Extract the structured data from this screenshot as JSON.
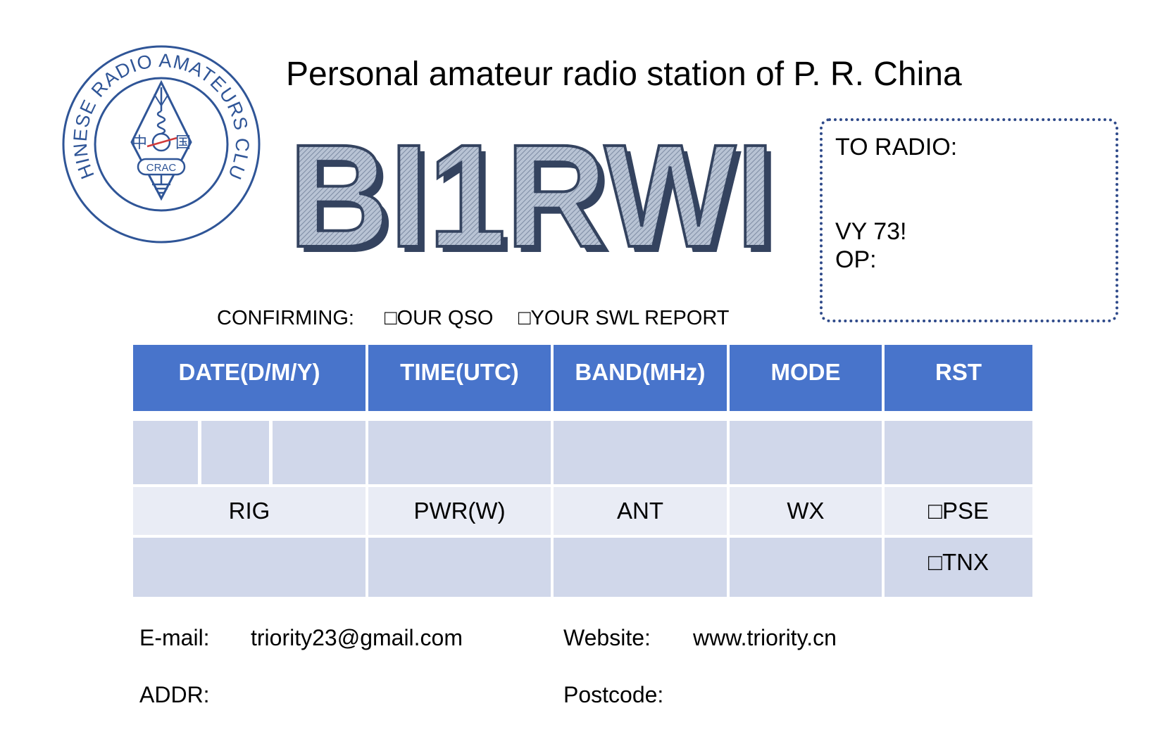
{
  "logo": {
    "ring_text": "CHINESE RADIO AMATEURS CLUB",
    "badge_text": "CRAC",
    "left_char": "中",
    "right_char": "国",
    "color": "#2f5597"
  },
  "heading": "Personal amateur radio station of P. R. China",
  "callsign": "BI1RWI",
  "callsign_colors": {
    "fill": "#9aa8be",
    "shadow": "#34435f"
  },
  "to_radio_box": {
    "to_radio_label": "TO RADIO:",
    "vy73_label": "VY 73!",
    "op_label": "OP:",
    "border_color": "#2f4a8a"
  },
  "confirming": {
    "label": "CONFIRMING:",
    "option_qso": "□OUR QSO",
    "option_swl": "□YOUR SWL REPORT"
  },
  "table": {
    "header_color": "#4874cb",
    "cell_color": "#d0d7ea",
    "label_row_color": "#e9ecf5",
    "headers": [
      "DATE(D/M/Y)",
      "TIME(UTC)",
      "BAND(MHz)",
      "MODE",
      "RST"
    ],
    "labels": [
      "RIG",
      "PWR(W)",
      "ANT",
      "WX"
    ],
    "pse_label": "□PSE",
    "tnx_label": "□TNX"
  },
  "contact": {
    "email_label": "E-mail:",
    "email_value": "triority23@gmail.com",
    "website_label": "Website:",
    "website_value": "www.triority.cn",
    "addr_label": "ADDR:",
    "postcode_label": "Postcode:"
  }
}
